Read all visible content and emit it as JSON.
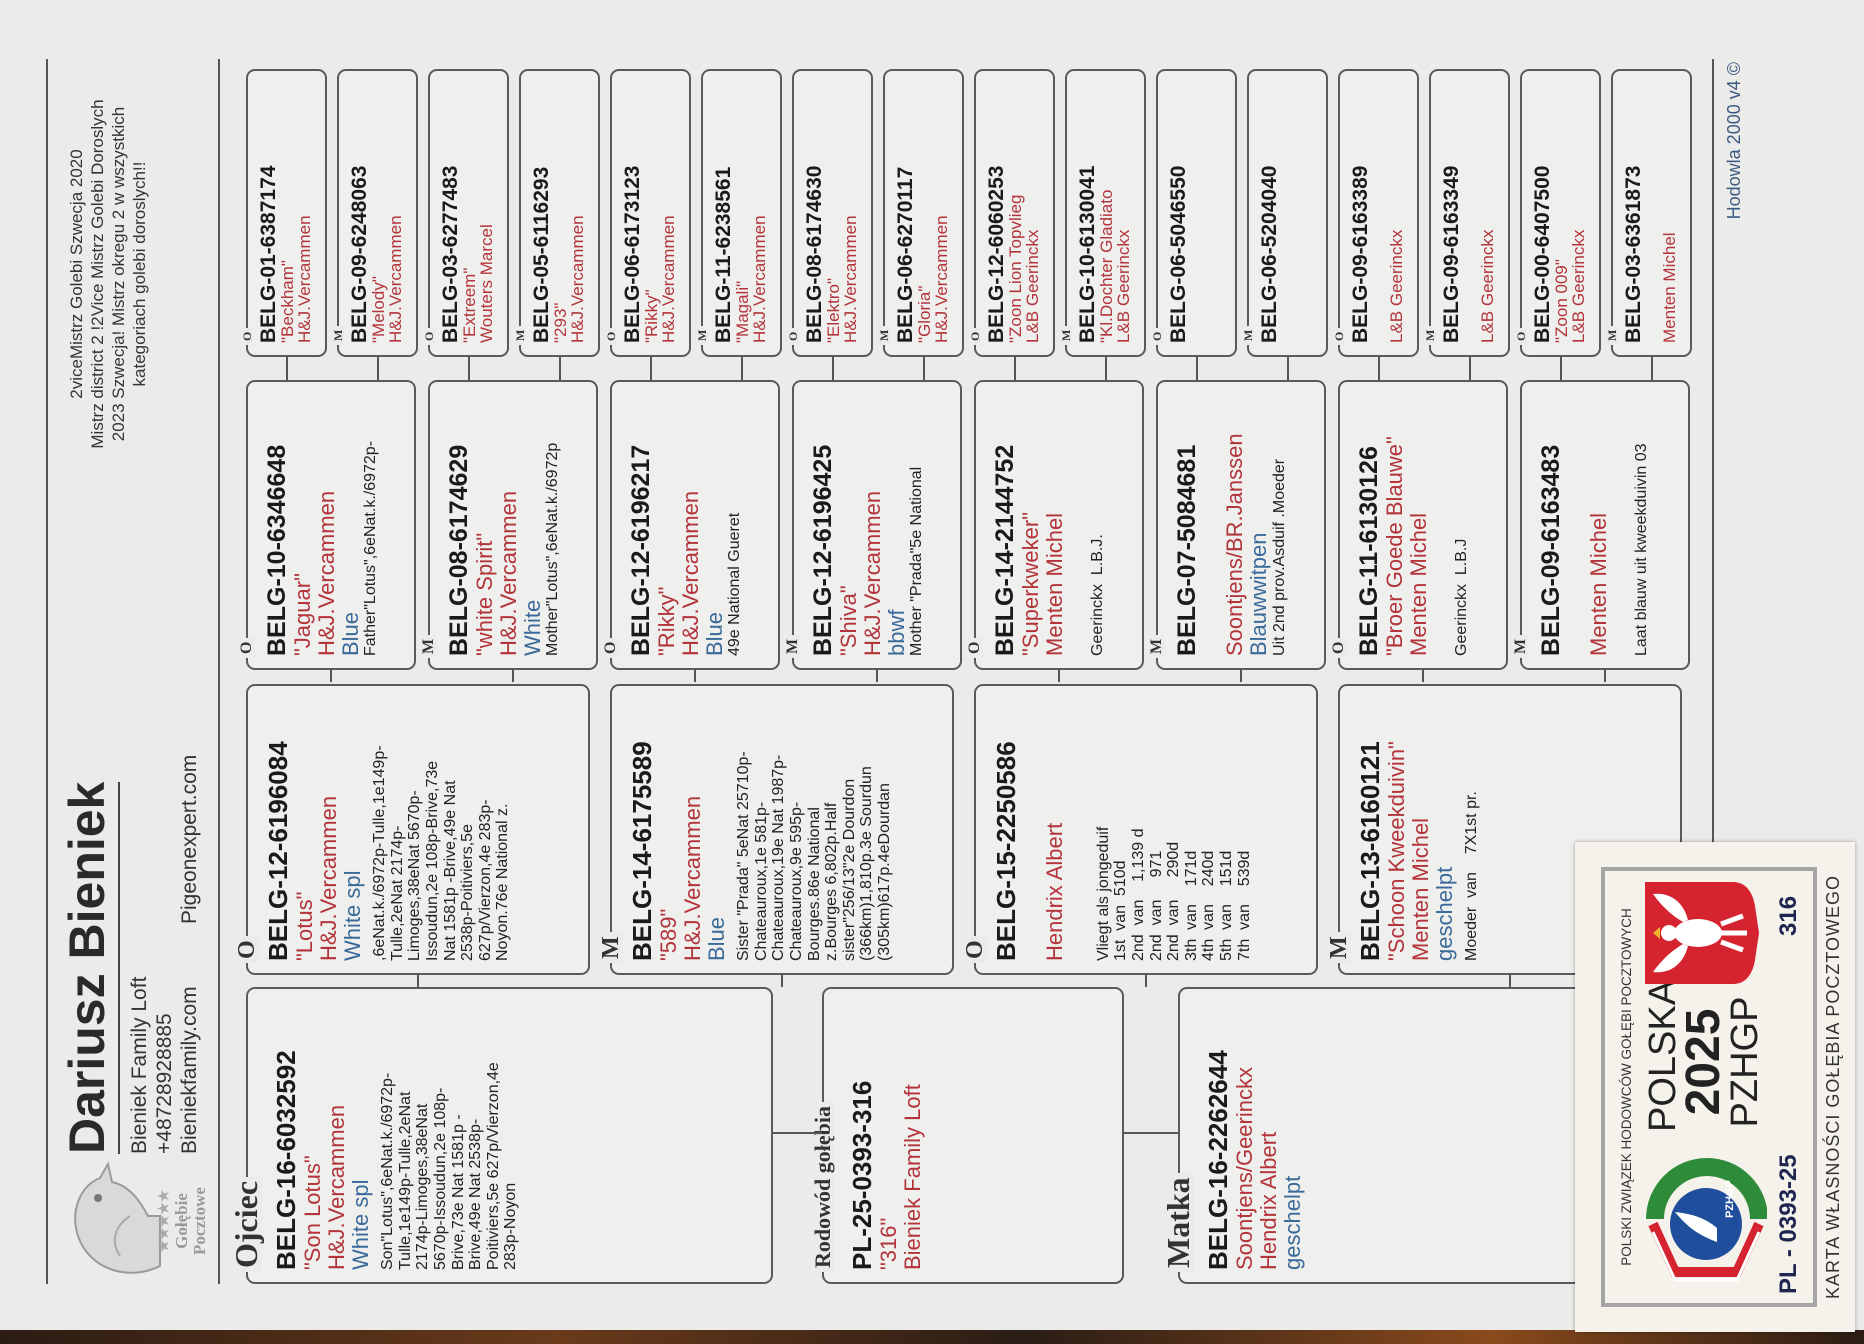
{
  "header": {
    "owner_name": "Dariusz Bieniek",
    "loft": "Bieniek Family Loft",
    "phone": "+48728928885",
    "website_1": "Bieniekfamily.com",
    "website_2": "Pigeonexpert.com",
    "logo_text": [
      "Gołębie",
      "Pocztowe"
    ],
    "achievements": [
      "2viceMistrz Golebi Szwecja 2020",
      "Mistrz district 2 !2Vice Mistrz Golebi Doroslych",
      "2023 Szwecja! Mistrz okregu 2 w wszystkich",
      "kategoriach golebi doroslych!!"
    ]
  },
  "pedigree": {
    "father": {
      "label": "Ojciec",
      "ring": "BELG-16-6032592",
      "name": "\"Son Lotus\"",
      "breeder": "H&J.Vercammen",
      "color": "White spl",
      "notes": "Son\"Lotus\",6eNat.k./6972p-\nTulle,1e149p-Tulle,2eNat\n2174p-Limoges,38eNat\n5670p-Issoudun,2e 108p-\nBrive,73e Nat 1581p -\nBrive,49e Nat 2538p-\nPoitiviers,5e 627p/Vierzon,4e\n283p-Noyon"
    },
    "subject": {
      "label": "Rodowód gołębia",
      "ring": "PL-25-0393-316",
      "name": "\"316\"",
      "breeder": "Bieniek Family Loft"
    },
    "mother": {
      "label": "Matka",
      "ring": "BELG-16-2262644",
      "name": "Soontjens/Geerinckx",
      "breeder": "Hendrix Albert",
      "color": "geschelpt",
      "notes": ""
    },
    "gen2": [
      {
        "sex": "O",
        "ring": "BELG-12-6196084",
        "name": "\"Lotus\"",
        "breeder": "H&J.Vercammen",
        "color": "White spl",
        "notes": ",6eNat.k./6972p-Tulle,1e149p-\nTulle,2eNat 2174p-\nLimoges,38eNat 5670p-\nIssoudun,2e 108p-Brive,73e\nNat 1581p -Brive,49e Nat\n2538p-Poitiviers,5e\n627p/Vierzon,4e 283p-\nNoyon.76e National z."
      },
      {
        "sex": "M",
        "ring": "BELG-14-6175589",
        "name": "\"589\"",
        "breeder": "H&J.Vercammen",
        "color": "Blue",
        "notes": "Sister \"Prada\" 5eNat 25710p-\nChateauroux,1e 581p-\nChateauroux,19e Nat 1987p-\nChateauroux,9e 595p-\nBourges.86e National\nz.Bourges 6,802p.Half\nsister\"256/13\"2e Dourdon\n(366km)1,810p.3e Sourdun\n(305km)617p.4eDourdan"
      },
      {
        "sex": "O",
        "ring": "BELG-15-2250586",
        "name": "",
        "breeder": "Hendrix Albert",
        "color": "",
        "notes": "Vliegt als jongeduif\n1st  van  510d\n2nd  van    1,139 d\n2nd  van     971\n2nd  van     290d\n3th  van    171d\n4th  van    240d\n5th  van    151d\n7th  van    539d"
      },
      {
        "sex": "M",
        "ring": "BELG-13-6160121",
        "name": "\"Schoon Kweekduivin\"",
        "breeder": "Menten Michel",
        "color": "geschelpt",
        "notes": "Moeder  van    7X1st pr."
      }
    ],
    "gen3": [
      {
        "sex": "O",
        "ring": "BELG-10-6346648",
        "name": "\"Jaguar\"",
        "breeder": "H&J.Vercammen",
        "color": "Blue",
        "notes": "Father\"Lotus\",6eNat.k./6972p-"
      },
      {
        "sex": "M",
        "ring": "BELG-08-6174629",
        "name": "\"white Spirit\"",
        "breeder": "H&J.Vercammen",
        "color": "White",
        "notes": "Mother\"Lotus\",6eNat.k./6972p"
      },
      {
        "sex": "O",
        "ring": "BELG-12-6196217",
        "name": "\"Rikky\"",
        "breeder": "H&J.Vercammen",
        "color": "Blue",
        "notes": "49e National Gueret"
      },
      {
        "sex": "M",
        "ring": "BELG-12-6196425",
        "name": "\"Shiva\"",
        "breeder": "H&J.Vercammen",
        "color": "bbwf",
        "notes": "Mother \"Prada\"5e National"
      },
      {
        "sex": "O",
        "ring": "BELG-14-2144752",
        "name": "\"Superkweker\"",
        "breeder": "Menten Michel",
        "color": "",
        "notes": "Geerinckx  L.B.J."
      },
      {
        "sex": "M",
        "ring": "BELG-07-5084681",
        "name": "",
        "breeder": "Soontjens/BR.Janssen",
        "color": "Blauwwitpen",
        "notes": "Uit 2nd prov.Asduif .Moeder"
      },
      {
        "sex": "O",
        "ring": "BELG-11-6130126",
        "name": "\"Broer Goede Blauwe\"",
        "breeder": "Menten Michel",
        "color": "",
        "notes": "Geerinckx  L.B.J"
      },
      {
        "sex": "M",
        "ring": "BELG-09-6163483",
        "name": "",
        "breeder": "Menten Michel",
        "color": "",
        "notes": "Laat blauw uit kweekduivin 03"
      }
    ],
    "gen4": [
      {
        "sex": "O",
        "ring": "BELG-01-6387174",
        "name": "\"Beckham\"",
        "breeder": "H&J.Vercammen"
      },
      {
        "sex": "M",
        "ring": "BELG-09-6248063",
        "name": "\"Melody\"",
        "breeder": "H&J.Vercammen"
      },
      {
        "sex": "O",
        "ring": "BELG-03-6277483",
        "name": "\"Extreem\"",
        "breeder": "Wouters Marcel"
      },
      {
        "sex": "M",
        "ring": "BELG-05-6116293",
        "name": "\"293\"",
        "breeder": "H&J.Vercammen"
      },
      {
        "sex": "O",
        "ring": "BELG-06-6173123",
        "name": "\"Rikky\"",
        "breeder": "H&J.Vercammen"
      },
      {
        "sex": "M",
        "ring": "BELG-11-6238561",
        "name": "\"Magali\"",
        "breeder": "H&J.Vercammen"
      },
      {
        "sex": "O",
        "ring": "BELG-08-6174630",
        "name": "\"Elektro\"",
        "breeder": "H&J.Vercammen"
      },
      {
        "sex": "M",
        "ring": "BELG-06-6270117",
        "name": "\"Gloria\"",
        "breeder": "H&J.Vercammen"
      },
      {
        "sex": "O",
        "ring": "BELG-12-6060253",
        "name": "\"Zoon Lion Topvlieg",
        "breeder": "L&B Geerinckx"
      },
      {
        "sex": "M",
        "ring": "BELG-10-6130041",
        "name": "\"Kl.Dochter Gladiato",
        "breeder": "L&B Geerinckx"
      },
      {
        "sex": "O",
        "ring": "BELG-06-5046550",
        "name": "",
        "breeder": ""
      },
      {
        "sex": "M",
        "ring": "BELG-06-5204040",
        "name": "",
        "breeder": ""
      },
      {
        "sex": "O",
        "ring": "BELG-09-6163389",
        "name": "",
        "breeder": "L&B Geerinckx"
      },
      {
        "sex": "M",
        "ring": "BELG-09-6163349",
        "name": "",
        "breeder": "L&B Geerinckx"
      },
      {
        "sex": "O",
        "ring": "BELG-00-6407500",
        "name": "\"Zoon 009\"",
        "breeder": "L&B Geerinckx"
      },
      {
        "sex": "M",
        "ring": "BELG-03-6361873",
        "name": "",
        "breeder": "Menten Michel"
      }
    ]
  },
  "footer": {
    "software": "Hodowla 2000 v4 ©"
  },
  "card": {
    "org": "POLSKI ZWIĄZEK HODOWCÓW GOŁĘBI POCZTOWYCH",
    "country": "POLSKA",
    "year": "2025",
    "abbr": "PZHGP",
    "ring": "PL - 0393-25",
    "number": "316",
    "title": "KARTA  WŁASNOŚCI GOŁĘBIA POCZTOWEGO",
    "logo_text": "PZHGP"
  },
  "colors": {
    "breeder_red": "#b3343a",
    "color_blue": "#3a6a9a",
    "card_red": "#d5232f",
    "card_blue": "#1f4f9c",
    "card_green": "#2e8b3a"
  }
}
